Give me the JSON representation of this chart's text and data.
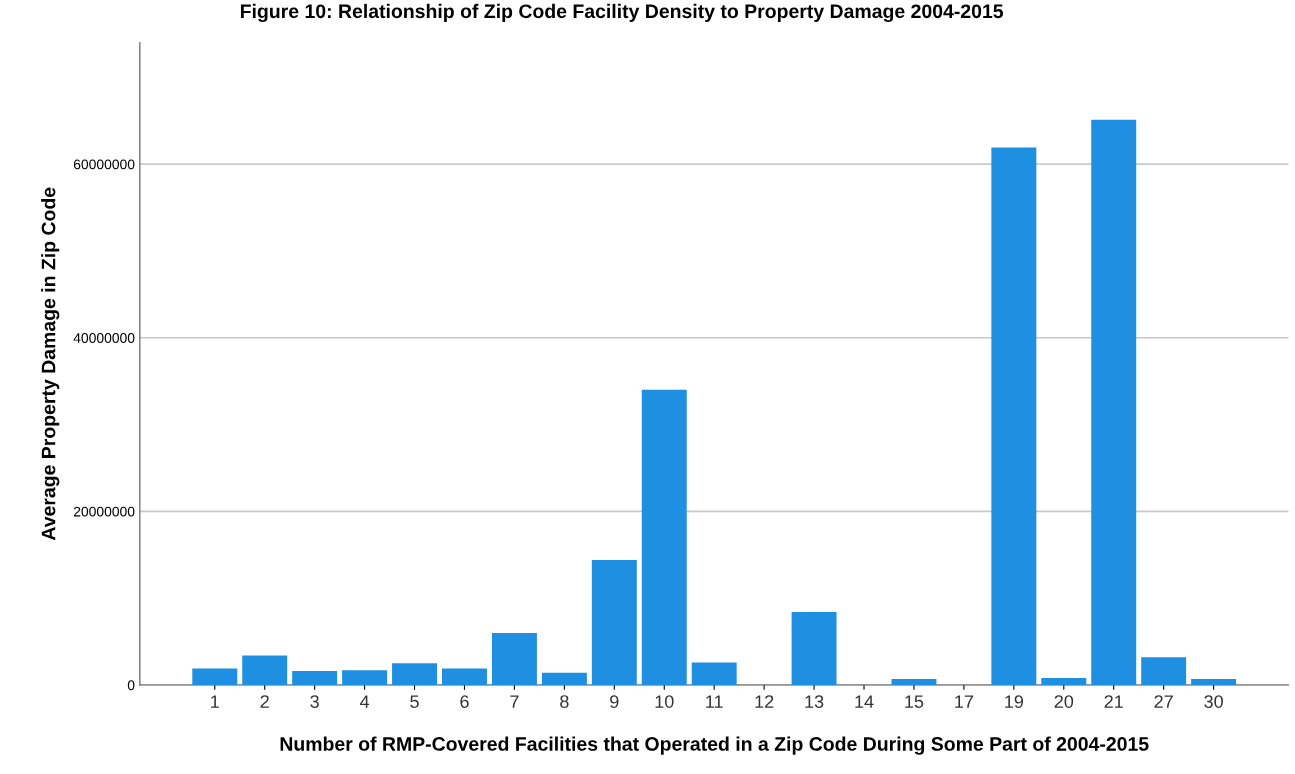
{
  "chart_data": {
    "type": "bar",
    "title": "Figure 10: Relationship of Zip Code Facility Density to Property Damage 2004-2015",
    "xlabel": "Number of RMP-Covered Facilities that Operated in a Zip Code During Some Part of 2004-2015",
    "ylabel": "Average Property Damage in Zip Code",
    "categories": [
      "1",
      "2",
      "3",
      "4",
      "5",
      "6",
      "7",
      "8",
      "9",
      "10",
      "11",
      "12",
      "13",
      "14",
      "15",
      "17",
      "19",
      "20",
      "21",
      "27",
      "30"
    ],
    "values": [
      1900000,
      3400000,
      1600000,
      1700000,
      2500000,
      1900000,
      6000000,
      1400000,
      14400000,
      34000000,
      2600000,
      null,
      8400000,
      null,
      700000,
      null,
      61900000,
      800000,
      65100000,
      3200000,
      700000
    ],
    "color": "#1e8fe1",
    "ylim": [
      0,
      74000000
    ],
    "yticks": [
      0,
      20000000,
      40000000,
      60000000
    ],
    "grid": "y"
  }
}
